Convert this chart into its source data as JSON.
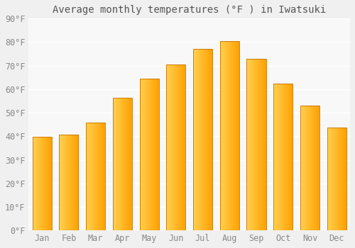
{
  "title": "Average monthly temperatures (°F ) in Iwatsuki",
  "months": [
    "Jan",
    "Feb",
    "Mar",
    "Apr",
    "May",
    "Jun",
    "Jul",
    "Aug",
    "Sep",
    "Oct",
    "Nov",
    "Dec"
  ],
  "values": [
    39.9,
    40.6,
    45.7,
    56.3,
    64.6,
    70.5,
    77.2,
    80.4,
    73.0,
    62.4,
    52.9,
    43.7
  ],
  "bar_color_left": "#FFD050",
  "bar_color_right": "#FFA000",
  "bar_border_color": "#C87000",
  "ylim": [
    0,
    90
  ],
  "yticks": [
    0,
    10,
    20,
    30,
    40,
    50,
    60,
    70,
    80,
    90
  ],
  "ytick_labels": [
    "0°F",
    "10°F",
    "20°F",
    "30°F",
    "40°F",
    "50°F",
    "60°F",
    "70°F",
    "80°F",
    "90°F"
  ],
  "title_fontsize": 10,
  "tick_fontsize": 8.5,
  "bg_color": "#F0F0F0",
  "plot_bg_color": "#F8F8F8",
  "grid_color": "#FFFFFF",
  "bar_width": 0.72
}
